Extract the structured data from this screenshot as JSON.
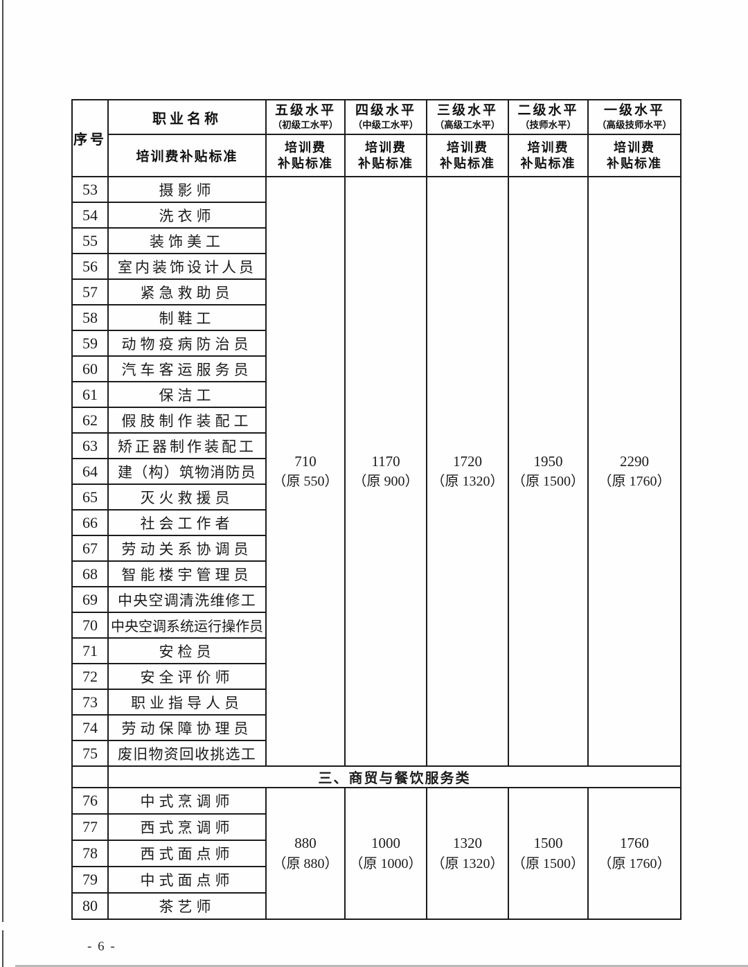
{
  "page": {
    "number_label": "- 6 -"
  },
  "table": {
    "header": {
      "col_no": "序号",
      "col_name": "职业名称",
      "col_subsidy": "培训费补贴标准",
      "fee_line1": "培训费",
      "fee_line2": "补贴标准",
      "levels": [
        {
          "title": "五级水平",
          "paren": "（初级工水平）"
        },
        {
          "title": "四级水平",
          "paren": "（中级工水平）"
        },
        {
          "title": "三级水平",
          "paren": "（高级工水平）"
        },
        {
          "title": "二级水平",
          "paren": "（技师水平）"
        },
        {
          "title": "一级水平",
          "paren": "（高级技师水平）"
        }
      ]
    },
    "group1": {
      "rows": [
        {
          "no": "53",
          "name": "摄影师"
        },
        {
          "no": "54",
          "name": "洗衣师"
        },
        {
          "no": "55",
          "name": "装饰美工"
        },
        {
          "no": "56",
          "name": "室内装饰设计人员"
        },
        {
          "no": "57",
          "name": "紧急救助员"
        },
        {
          "no": "58",
          "name": "制鞋工"
        },
        {
          "no": "59",
          "name": "动物疫病防治员"
        },
        {
          "no": "60",
          "name": "汽车客运服务员"
        },
        {
          "no": "61",
          "name": "保洁工"
        },
        {
          "no": "62",
          "name": "假肢制作装配工"
        },
        {
          "no": "63",
          "name": "矫正器制作装配工"
        },
        {
          "no": "64",
          "name": "建（构）筑物消防员"
        },
        {
          "no": "65",
          "name": "灭火救援员"
        },
        {
          "no": "66",
          "name": "社会工作者"
        },
        {
          "no": "67",
          "name": "劳动关系协调员"
        },
        {
          "no": "68",
          "name": "智能楼宇管理员"
        },
        {
          "no": "69",
          "name": "中央空调清洗维修工"
        },
        {
          "no": "70",
          "name": "中央空调系统运行操作员"
        },
        {
          "no": "71",
          "name": "安检员"
        },
        {
          "no": "72",
          "name": "安全评价师"
        },
        {
          "no": "73",
          "name": "职业指导人员"
        },
        {
          "no": "74",
          "name": "劳动保障协理员"
        },
        {
          "no": "75",
          "name": "废旧物资回收挑选工"
        }
      ],
      "values": [
        {
          "amount": "710",
          "orig": "（原 550）"
        },
        {
          "amount": "1170",
          "orig": "（原 900）"
        },
        {
          "amount": "1720",
          "orig": "（原 1320）"
        },
        {
          "amount": "1950",
          "orig": "（原 1500）"
        },
        {
          "amount": "2290",
          "orig": "（原 1760）"
        }
      ]
    },
    "section": {
      "title": "三、商贸与餐饮服务类"
    },
    "group2": {
      "rows": [
        {
          "no": "76",
          "name": "中式烹调师"
        },
        {
          "no": "77",
          "name": "西式烹调师"
        },
        {
          "no": "78",
          "name": "西式面点师"
        },
        {
          "no": "79",
          "name": "中式面点师"
        },
        {
          "no": "80",
          "name": "茶艺师"
        }
      ],
      "values": [
        {
          "amount": "880",
          "orig": "（原 880）"
        },
        {
          "amount": "1000",
          "orig": "（原 1000）"
        },
        {
          "amount": "1320",
          "orig": "（原 1320）"
        },
        {
          "amount": "1500",
          "orig": "（原 1500）"
        },
        {
          "amount": "1760",
          "orig": "（原 1760）"
        }
      ]
    }
  }
}
